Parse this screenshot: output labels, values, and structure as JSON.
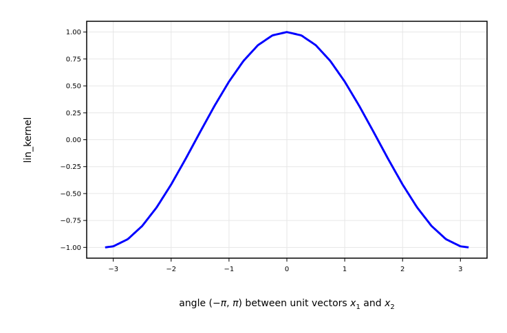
{
  "chart_data": {
    "type": "line",
    "xlabel": {
      "prefix": "angle (",
      "neg": "−",
      "pi": "π",
      "comma": ", ",
      "pi2": "π",
      "mid": ") between unit vectors ",
      "x1": "x",
      "sub1": "1",
      "and": " and ",
      "x2": "x",
      "sub2": "2"
    },
    "ylabel": "lin_kernel",
    "xlim": [
      -3.46,
      3.46
    ],
    "ylim": [
      -1.1,
      1.1
    ],
    "xticks": [
      -3,
      -2,
      -1,
      0,
      1,
      2,
      3
    ],
    "xtick_labels": [
      "−3",
      "−2",
      "−1",
      "0",
      "1",
      "2",
      "3"
    ],
    "yticks": [
      1.0,
      0.75,
      0.5,
      0.25,
      0.0,
      -0.25,
      -0.5,
      -0.75,
      -1.0
    ],
    "ytick_labels": [
      "1.00",
      "0.75",
      "0.50",
      "0.25",
      "0.00",
      "−0.25",
      "−0.50",
      "−0.75",
      "−1.00"
    ],
    "grid": true,
    "series": [
      {
        "color": "#0000ff",
        "x": [
          -3.1416,
          -3.0,
          -2.75,
          -2.5,
          -2.25,
          -2.0,
          -1.75,
          -1.5,
          -1.25,
          -1.0,
          -0.75,
          -0.5,
          -0.25,
          0.0,
          0.25,
          0.5,
          0.75,
          1.0,
          1.25,
          1.5,
          1.75,
          2.0,
          2.25,
          2.5,
          2.75,
          3.0,
          3.1416
        ],
        "y": [
          -1.0,
          -0.99,
          -0.924,
          -0.801,
          -0.628,
          -0.416,
          -0.178,
          0.071,
          0.315,
          0.54,
          0.732,
          0.878,
          0.969,
          1.0,
          0.969,
          0.878,
          0.732,
          0.54,
          0.315,
          0.071,
          -0.178,
          -0.416,
          -0.628,
          -0.801,
          -0.924,
          -0.99,
          -1.0
        ]
      }
    ]
  },
  "colors": {
    "line": "#0000ff",
    "grid": "#e6e6e6",
    "axes": "#000000"
  }
}
